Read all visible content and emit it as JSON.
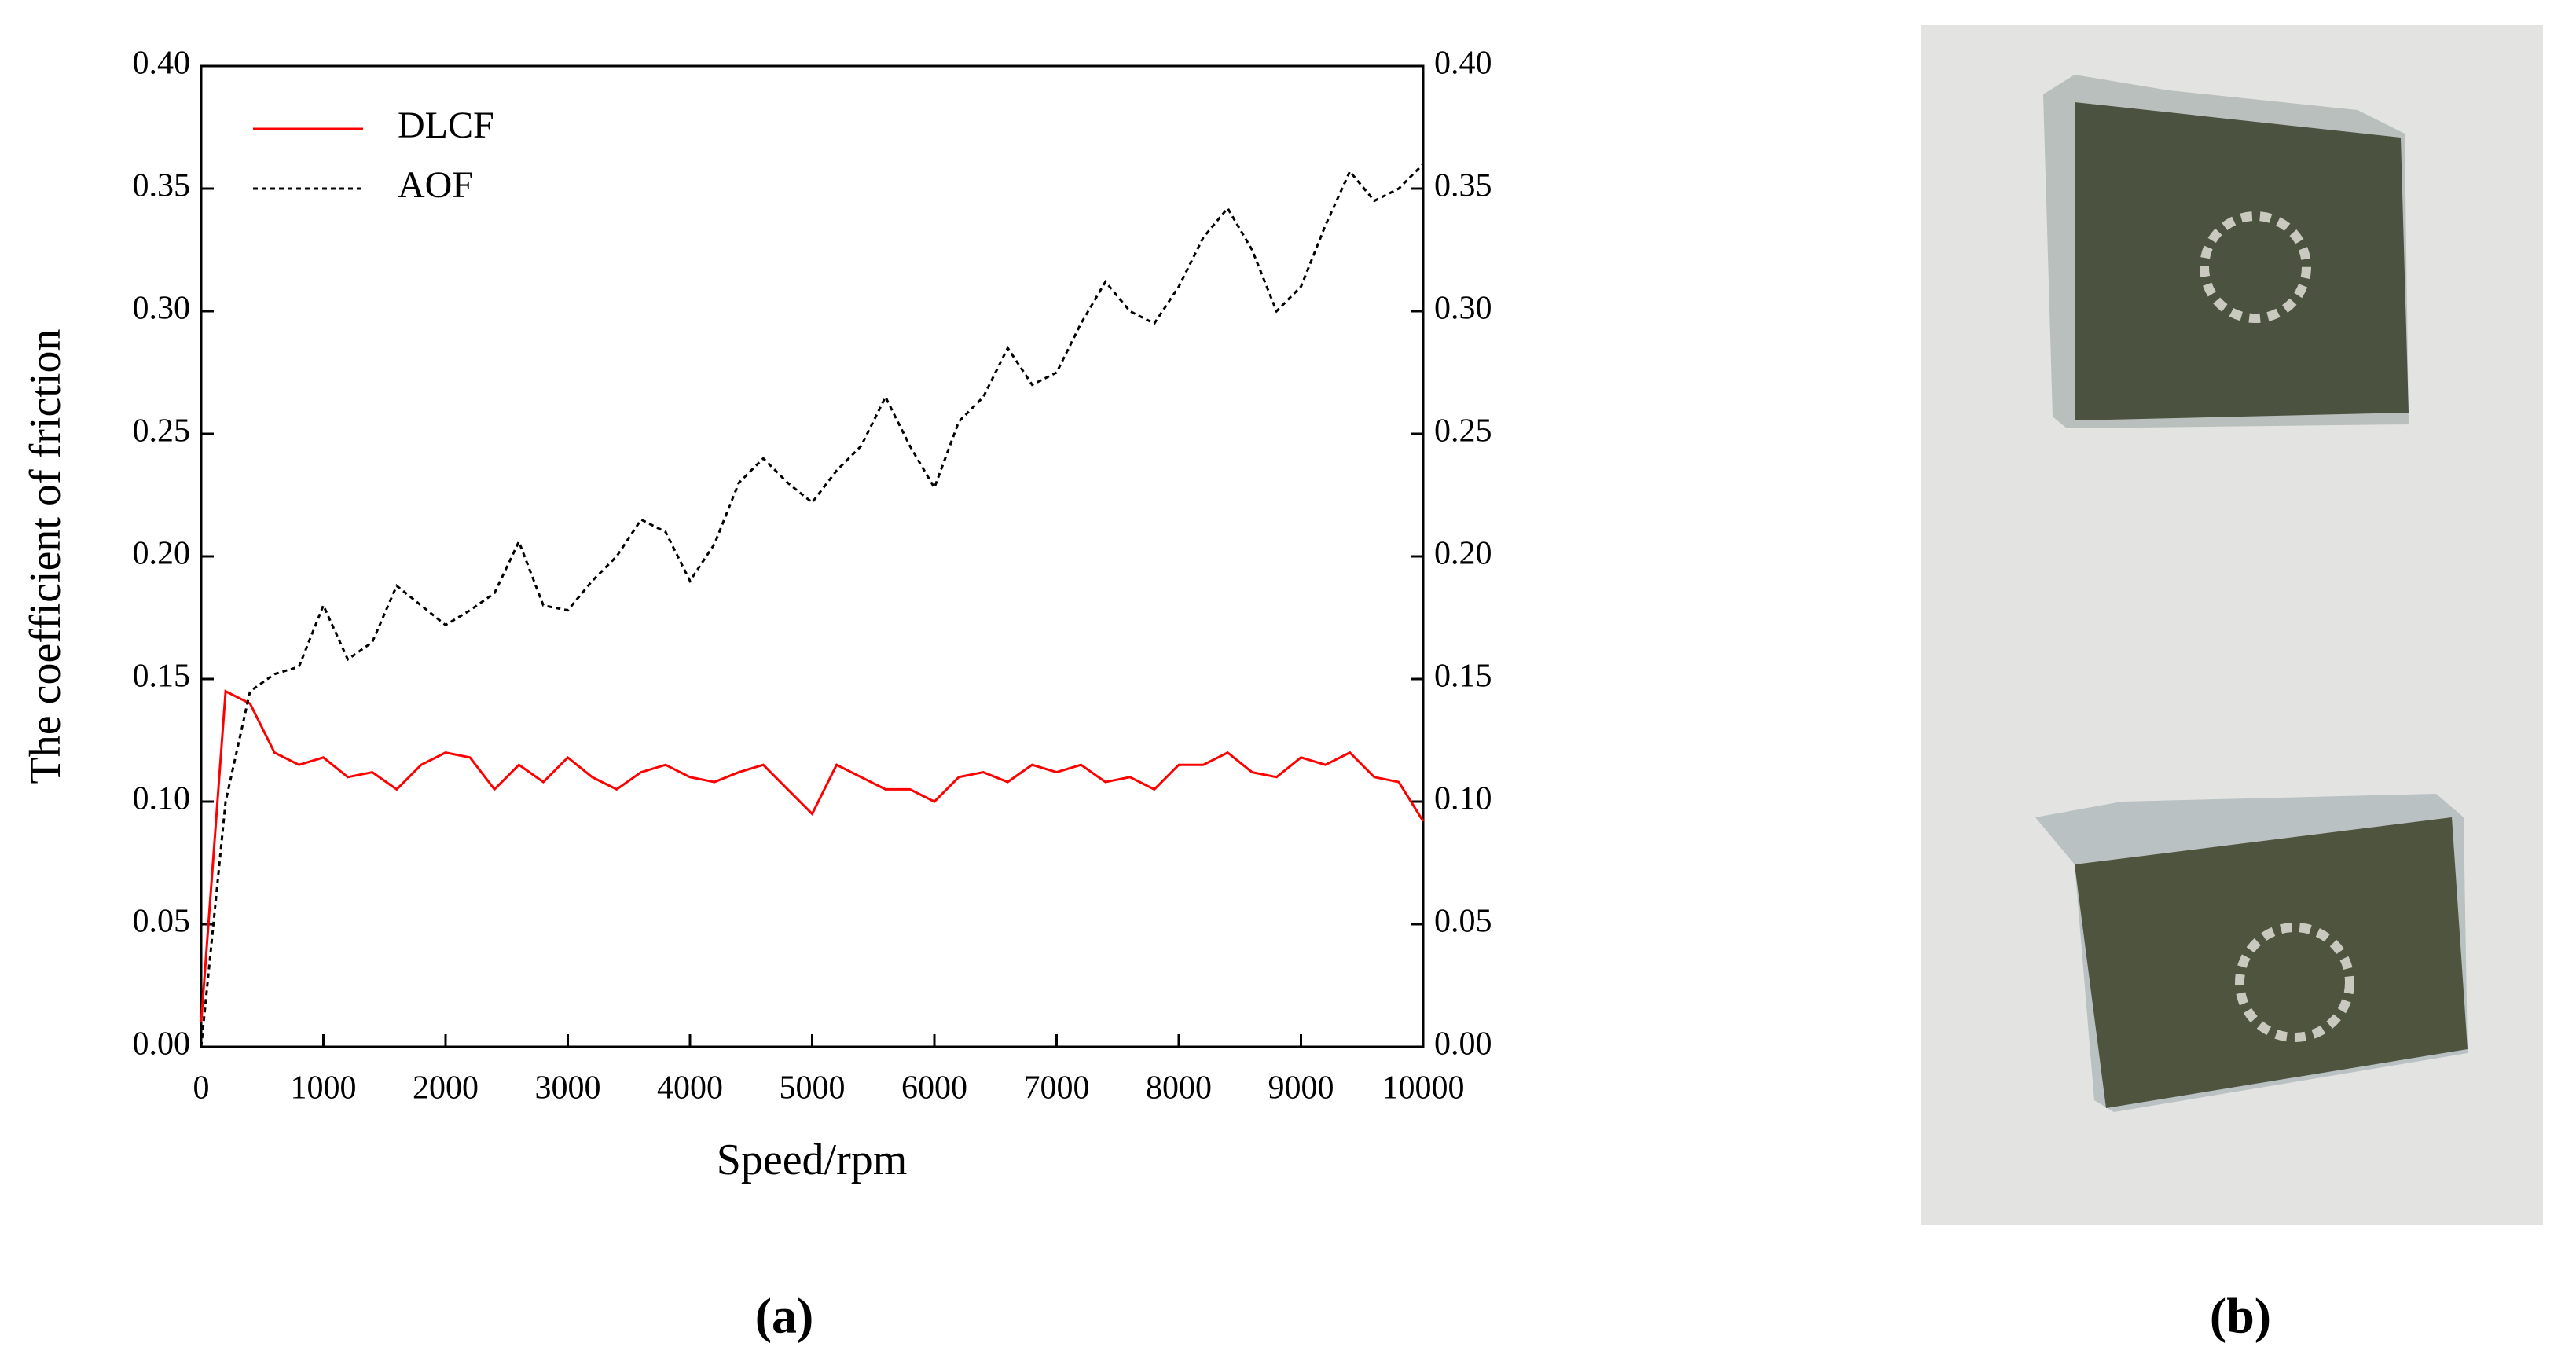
{
  "chart_data": {
    "type": "line",
    "xlabel": "Speed/rpm",
    "ylabel": "The coefficient of friction",
    "x": [
      0,
      200,
      400,
      600,
      800,
      1000,
      1200,
      1400,
      1600,
      1800,
      2000,
      2200,
      2400,
      2600,
      2800,
      3000,
      3200,
      3400,
      3600,
      3800,
      4000,
      4200,
      4400,
      4600,
      4800,
      5000,
      5200,
      5400,
      5600,
      5800,
      6000,
      6200,
      6400,
      6600,
      6800,
      7000,
      7200,
      7400,
      7600,
      7800,
      8000,
      8200,
      8400,
      8600,
      8800,
      9000,
      9200,
      9400,
      9600,
      9800,
      10000
    ],
    "series": [
      {
        "name": "DLCF",
        "color": "#ff0000",
        "dash": "solid",
        "values": [
          0.01,
          0.145,
          0.14,
          0.12,
          0.115,
          0.118,
          0.11,
          0.112,
          0.105,
          0.115,
          0.12,
          0.118,
          0.105,
          0.115,
          0.108,
          0.118,
          0.11,
          0.105,
          0.112,
          0.115,
          0.11,
          0.108,
          0.112,
          0.115,
          0.105,
          0.095,
          0.115,
          0.11,
          0.105,
          0.105,
          0.1,
          0.11,
          0.112,
          0.108,
          0.115,
          0.112,
          0.115,
          0.108,
          0.11,
          0.105,
          0.115,
          0.115,
          0.12,
          0.112,
          0.11,
          0.118,
          0.115,
          0.12,
          0.11,
          0.108,
          0.092
        ]
      },
      {
        "name": "AOF",
        "color": "#000000",
        "dash": "dotted",
        "values": [
          0.0,
          0.1,
          0.145,
          0.152,
          0.155,
          0.18,
          0.158,
          0.165,
          0.188,
          0.18,
          0.172,
          0.178,
          0.185,
          0.206,
          0.18,
          0.178,
          0.19,
          0.2,
          0.215,
          0.21,
          0.19,
          0.205,
          0.23,
          0.24,
          0.23,
          0.222,
          0.235,
          0.245,
          0.265,
          0.245,
          0.228,
          0.255,
          0.265,
          0.285,
          0.27,
          0.275,
          0.295,
          0.312,
          0.3,
          0.295,
          0.31,
          0.33,
          0.342,
          0.325,
          0.3,
          0.31,
          0.335,
          0.357,
          0.345,
          0.35,
          0.36
        ]
      }
    ],
    "xlim": [
      0,
      10000
    ],
    "xticks": [
      0,
      1000,
      2000,
      3000,
      4000,
      5000,
      6000,
      7000,
      8000,
      9000,
      10000
    ],
    "ylim": [
      0,
      0.4
    ],
    "yticks": [
      {
        "value": 0,
        "label": "0.00"
      },
      {
        "value": 0.05,
        "label": "0.05"
      },
      {
        "value": 0.1,
        "label": "0.10"
      },
      {
        "value": 0.15,
        "label": "0.15"
      },
      {
        "value": 0.2,
        "label": "0.20"
      },
      {
        "value": 0.25,
        "label": "0.25"
      },
      {
        "value": 0.3,
        "label": "0.30"
      },
      {
        "value": 0.35,
        "label": "0.35"
      },
      {
        "value": 0.4,
        "label": "0.40"
      }
    ],
    "y2lim": [
      0,
      0.4
    ],
    "y2ticks": [
      {
        "value": 0,
        "label": "0.00"
      },
      {
        "value": 0.05,
        "label": "0.05"
      },
      {
        "value": 0.1,
        "label": "0.10"
      },
      {
        "value": 0.15,
        "label": "0.15"
      },
      {
        "value": 0.2,
        "label": "0.20"
      },
      {
        "value": 0.25,
        "label": "0.25"
      },
      {
        "value": 0.3,
        "label": "0.30"
      },
      {
        "value": 0.35,
        "label": "0.35"
      },
      {
        "value": 0.4,
        "label": "0.40"
      }
    ],
    "legend": "upper left",
    "grid": false
  },
  "captions": [
    "(a)",
    "(b)"
  ]
}
